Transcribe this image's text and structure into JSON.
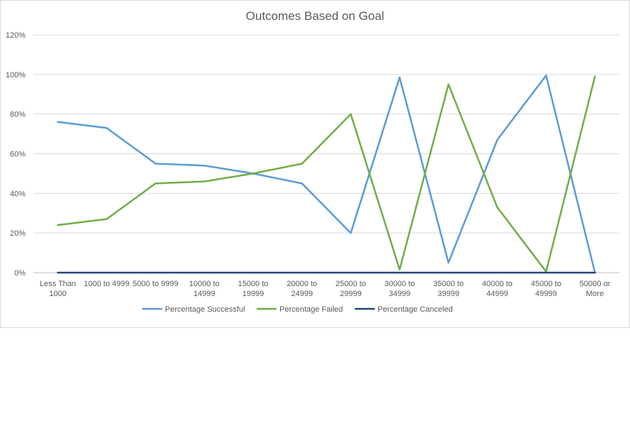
{
  "chart_data": {
    "type": "line",
    "title": "Outcomes Based on Goal",
    "xlabel": "",
    "ylabel": "",
    "ylim": [
      0,
      1.2
    ],
    "y_ticks": [
      0,
      0.2,
      0.4,
      0.6,
      0.8,
      1.0,
      1.2
    ],
    "y_tick_labels": [
      "0%",
      "20%",
      "40%",
      "60%",
      "80%",
      "100%",
      "120%"
    ],
    "grid": true,
    "legend_position": "bottom",
    "categories": [
      [
        "Less Than",
        "1000"
      ],
      [
        "1000 to 4999"
      ],
      [
        "5000 to 9999"
      ],
      [
        "10000 to",
        "14999"
      ],
      [
        "15000 to",
        "19999"
      ],
      [
        "20000 to",
        "24999"
      ],
      [
        "25000 to",
        "29999"
      ],
      [
        "30000 to",
        "34999"
      ],
      [
        "35000 to",
        "39999"
      ],
      [
        "40000 to",
        "44999"
      ],
      [
        "45000 to",
        "49999"
      ],
      [
        "50000 or",
        "More"
      ]
    ],
    "series": [
      {
        "name": "Percentage Successful",
        "color": "#5b9bd5",
        "values": [
          0.76,
          0.73,
          0.55,
          0.54,
          0.5,
          0.45,
          0.2,
          0.985,
          0.05,
          0.67,
          0.995,
          0.0
        ]
      },
      {
        "name": "Percentage Failed",
        "color": "#70ad47",
        "values": [
          0.24,
          0.27,
          0.45,
          0.46,
          0.5,
          0.55,
          0.8,
          0.015,
          0.95,
          0.33,
          0.005,
          0.99
        ]
      },
      {
        "name": "Percentage Canceled",
        "color": "#264478",
        "values": [
          0,
          0,
          0,
          0,
          0,
          0,
          0,
          0,
          0,
          0,
          0,
          0
        ]
      }
    ]
  }
}
